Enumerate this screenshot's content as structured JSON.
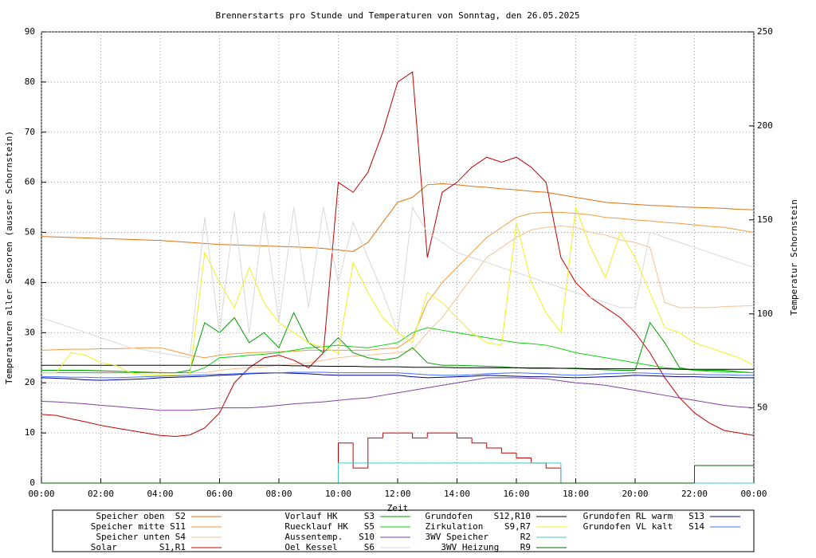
{
  "chart_data": {
    "type": "line",
    "title": "Brennerstarts pro Stunde und Temperaturen von Sonntag, den 26.05.2025",
    "x_label": "Zeit",
    "y_label": "Temperaturen aller Sensoren (ausser Schornstein)",
    "y2_label": "Temperatur Schornstein",
    "y2_label_color": "#ff40ff",
    "grid": true,
    "x": [
      0,
      0.5,
      1,
      1.5,
      2,
      2.5,
      3,
      3.5,
      4,
      4.5,
      5,
      5.5,
      6,
      6.5,
      7,
      7.5,
      8,
      8.5,
      9,
      9.5,
      10,
      10.5,
      11,
      11.5,
      12,
      12.5,
      13,
      13.5,
      14,
      14.5,
      15,
      15.5,
      16,
      16.5,
      17,
      17.5,
      18,
      18.5,
      19,
      19.5,
      20,
      20.5,
      21,
      21.5,
      22,
      22.5,
      23,
      23.5,
      24
    ],
    "xlim": [
      0,
      24
    ],
    "xticks": [
      {
        "value": 0,
        "label": "00:00"
      },
      {
        "value": 2,
        "label": "02:00"
      },
      {
        "value": 4,
        "label": "04:00"
      },
      {
        "value": 6,
        "label": "06:00"
      },
      {
        "value": 8,
        "label": "08:00"
      },
      {
        "value": 10,
        "label": "10:00"
      },
      {
        "value": 12,
        "label": "12:00"
      },
      {
        "value": 14,
        "label": "14:00"
      },
      {
        "value": 16,
        "label": "16:00"
      },
      {
        "value": 18,
        "label": "18:00"
      },
      {
        "value": 20,
        "label": "20:00"
      },
      {
        "value": 22,
        "label": "22:00"
      },
      {
        "value": 24,
        "label": "00:00"
      }
    ],
    "ylim": [
      0,
      90
    ],
    "yticks": [
      0,
      10,
      20,
      30,
      40,
      50,
      60,
      70,
      80,
      90
    ],
    "y2lim": [
      10,
      250
    ],
    "y2ticks": [
      50,
      100,
      150,
      200,
      250
    ],
    "series": [
      {
        "name": "Speicher oben  S2",
        "color": "#e07010",
        "values": [
          49.2,
          49.1,
          49,
          48.9,
          48.8,
          48.7,
          48.6,
          48.5,
          48.4,
          48.2,
          48,
          47.8,
          47.6,
          47.5,
          47.4,
          47.3,
          47.2,
          47.1,
          47,
          46.8,
          46.5,
          46.2,
          48,
          52,
          56,
          57,
          59.5,
          59.7,
          59.5,
          59.2,
          59,
          58.7,
          58.5,
          58.2,
          58,
          57.5,
          57,
          56.5,
          56,
          55.8,
          55.6,
          55.4,
          55.3,
          55.1,
          55,
          54.9,
          54.8,
          54.6,
          54.5
        ]
      },
      {
        "name": "Speicher mitte S11",
        "color": "#f09a40",
        "values": [
          26.5,
          26.6,
          26.7,
          26.7,
          26.8,
          26.8,
          26.9,
          27,
          27,
          26.3,
          25.5,
          25,
          25.5,
          25.8,
          26,
          26.1,
          26.2,
          26.3,
          26.5,
          26.5,
          26.5,
          26.5,
          26.5,
          26.8,
          27,
          29,
          36,
          40,
          43,
          46,
          49,
          51,
          53,
          53.8,
          54,
          54,
          53.8,
          53.5,
          53,
          52.8,
          52.5,
          52.3,
          52,
          51.8,
          51.5,
          51.2,
          51,
          50.5,
          50
        ]
      },
      {
        "name": "Speicher unten S4",
        "color": "#f8c090",
        "values": [
          22.5,
          22.5,
          22.4,
          22.4,
          22.3,
          22.3,
          22.2,
          22.2,
          22.1,
          22,
          22,
          22,
          22.5,
          22.8,
          23,
          23.2,
          23.5,
          23.8,
          24,
          24.5,
          25,
          25.3,
          25.5,
          25.8,
          26,
          26.5,
          30,
          33,
          37,
          41,
          45,
          47,
          49,
          50.5,
          51,
          51.3,
          51,
          50,
          49.5,
          48.5,
          48,
          47,
          36,
          35,
          35,
          35,
          35.2,
          35.3,
          35.4
        ]
      },
      {
        "name": "Solar        S1,R1",
        "color": "#c00000",
        "values": [
          13.7,
          13.5,
          12.8,
          12.2,
          11.5,
          11,
          10.5,
          10,
          9.5,
          9.3,
          9.6,
          11,
          14,
          20,
          23,
          25,
          25.5,
          24.5,
          23,
          26,
          60,
          58,
          62,
          70,
          80,
          82,
          45,
          58,
          60,
          63,
          65,
          64,
          65,
          63,
          60,
          45,
          40,
          37,
          35,
          33,
          30,
          26,
          21,
          17,
          14,
          12,
          10.5,
          10,
          9.5
        ],
        "relay_values": [
          0,
          0,
          0,
          0,
          0,
          0,
          0,
          0,
          0,
          0,
          0,
          0,
          0,
          0,
          0,
          0,
          0,
          0,
          0,
          0,
          8,
          3,
          9,
          10,
          10,
          9,
          10,
          10,
          9,
          8,
          7,
          6,
          5,
          4,
          3,
          0,
          0,
          0,
          0,
          0,
          0,
          0,
          0,
          0,
          0,
          0,
          0,
          0,
          0
        ]
      },
      {
        "name": "Vorlauf HK     S3",
        "color": "#00a000",
        "values": [
          22.5,
          22.5,
          22.5,
          22.5,
          22.4,
          22.3,
          22.2,
          22.1,
          22,
          22,
          22.5,
          32,
          30,
          33,
          28,
          30,
          27,
          34,
          28,
          26,
          29,
          26,
          25,
          24.5,
          25,
          27,
          24,
          23.5,
          23.5,
          23.4,
          23.3,
          23.2,
          23,
          23,
          23,
          22.9,
          22.8,
          22.7,
          22.6,
          22.5,
          22.5,
          32,
          28,
          23,
          22.5,
          22.5,
          22.5,
          22.2,
          22
        ]
      },
      {
        "name": "Ruecklauf HK   S5",
        "color": "#10d010",
        "values": [
          22,
          22,
          22,
          22,
          22,
          22,
          22,
          22,
          22,
          22,
          22,
          23,
          25,
          25.2,
          25.5,
          25.7,
          26,
          26.5,
          27,
          27.2,
          27.5,
          27.2,
          27,
          27.5,
          28,
          30,
          31,
          30.5,
          30,
          29.5,
          29,
          28.5,
          28,
          27.8,
          27.5,
          26.8,
          26,
          25.5,
          25,
          24.5,
          24,
          23.5,
          23,
          22.8,
          22.5,
          22.3,
          22.2,
          22.1,
          22
        ]
      },
      {
        "name": "Aussentemp.   S10",
        "color": "#8040a0",
        "values": [
          16.3,
          16.2,
          16,
          15.8,
          15.5,
          15.3,
          15,
          14.8,
          14.5,
          14.5,
          14.5,
          14.7,
          15,
          15,
          15,
          15.2,
          15.5,
          15.8,
          16,
          16.2,
          16.5,
          16.8,
          17,
          17.5,
          18,
          18.5,
          19,
          19.5,
          20,
          20.5,
          21,
          21,
          21,
          20.9,
          20.8,
          20.4,
          20,
          19.8,
          19.5,
          19,
          18.5,
          18,
          17.5,
          17,
          16.5,
          16,
          15.5,
          15.2,
          15
        ]
      },
      {
        "name": "Oel Kessel     S6",
        "color": "#d8d8d8",
        "values": [
          33,
          32,
          31,
          30,
          29,
          28,
          27,
          26.5,
          26,
          25.5,
          25,
          53,
          30,
          54,
          30,
          54,
          32,
          55,
          35,
          55,
          40,
          52,
          45,
          38,
          30,
          55,
          50,
          48,
          46,
          45,
          44,
          43,
          42,
          41,
          40,
          39,
          38,
          37,
          36,
          35,
          35,
          50,
          49,
          48,
          47,
          46,
          45,
          44,
          43
        ]
      },
      {
        "name": "Grundofen    S12,R10",
        "color": "#000000",
        "values": [
          23.5,
          23.5,
          23.5,
          23.5,
          23.5,
          23.5,
          23.5,
          23.5,
          23.5,
          23.5,
          23.5,
          23.5,
          23.5,
          23.5,
          23.5,
          23.5,
          23.5,
          23.4,
          23.4,
          23.3,
          23.3,
          23.3,
          23.2,
          23.2,
          23.2,
          23.1,
          23.1,
          23.1,
          23,
          23,
          23,
          23,
          23,
          22.9,
          22.9,
          22.9,
          22.9,
          22.8,
          22.8,
          22.8,
          22.8,
          22.8,
          22.8,
          22.7,
          22.7,
          22.7,
          22.7,
          22.7,
          22.7
        ]
      },
      {
        "name": "Zirkulation    S9,R7",
        "color": "#f0f020",
        "values": [
          22,
          22,
          26,
          25.5,
          24,
          23.5,
          22,
          21.5,
          21.5,
          21.5,
          21.5,
          46,
          40,
          35,
          43,
          36,
          32,
          30,
          28,
          27,
          26,
          44,
          38,
          33,
          30,
          28,
          38,
          36,
          33,
          30,
          28,
          27.5,
          52,
          40,
          34,
          30,
          55,
          47,
          41,
          50,
          45,
          38,
          31,
          30,
          28,
          27,
          26,
          25,
          23.5
        ]
      },
      {
        "name": "3WV Speicher      R2",
        "color": "#40c8c8",
        "step": true,
        "values": [
          0,
          0,
          0,
          0,
          0,
          0,
          0,
          0,
          0,
          0,
          0,
          0,
          0,
          0,
          0,
          0,
          0,
          0,
          0,
          0,
          4,
          4,
          4,
          4,
          4,
          4,
          4,
          4,
          4,
          4,
          4,
          4,
          4,
          4,
          4,
          0,
          0,
          0,
          0,
          0,
          0,
          0,
          0,
          0,
          0,
          0,
          0,
          0,
          0
        ]
      },
      {
        "name": "3WV Heizung    R9",
        "color": "#006000",
        "step": true,
        "values": [
          0,
          0,
          0,
          0,
          0,
          0,
          0,
          0,
          0,
          0,
          0,
          0,
          0,
          0,
          0,
          0,
          0,
          0,
          0,
          0,
          0,
          0,
          0,
          0,
          0,
          0,
          0,
          0,
          0,
          0,
          0,
          0,
          0,
          0,
          0,
          0,
          0,
          0,
          0,
          0,
          0,
          0,
          0,
          0,
          3.5,
          3.5,
          3.5,
          3.5,
          3.5
        ]
      },
      {
        "name": "Grundofen RL warm   S13",
        "color": "#000090",
        "values": [
          21,
          20.9,
          20.8,
          20.6,
          20.5,
          20.6,
          20.7,
          20.8,
          21,
          21.1,
          21.2,
          21.3,
          21.5,
          21.6,
          21.8,
          21.9,
          22,
          21.9,
          21.8,
          21.6,
          21.5,
          21.5,
          21.5,
          21.5,
          21.5,
          21.2,
          21,
          21.1,
          21.2,
          21.3,
          21.5,
          21.4,
          21.3,
          21.2,
          21.2,
          21.1,
          21,
          21.1,
          21.2,
          21.3,
          21.5,
          21.4,
          21.3,
          21.2,
          21.2,
          21.1,
          21.1,
          21,
          21
        ]
      },
      {
        "name": "Grundofen VL kalt   S14",
        "color": "#4070ff",
        "values": [
          21.2,
          21.2,
          21.1,
          21.1,
          21,
          21,
          21.1,
          21.2,
          21.3,
          21.4,
          21.5,
          21.6,
          21.7,
          21.8,
          21.9,
          22,
          22,
          22.1,
          22.1,
          22.1,
          22,
          22,
          22,
          22,
          22,
          21.8,
          21.6,
          21.5,
          21.5,
          21.6,
          21.8,
          21.9,
          22,
          21.9,
          21.8,
          21.6,
          21.5,
          21.6,
          21.8,
          21.9,
          22,
          21.9,
          21.8,
          21.7,
          21.7,
          21.6,
          21.6,
          21.5,
          21.5
        ]
      }
    ]
  }
}
